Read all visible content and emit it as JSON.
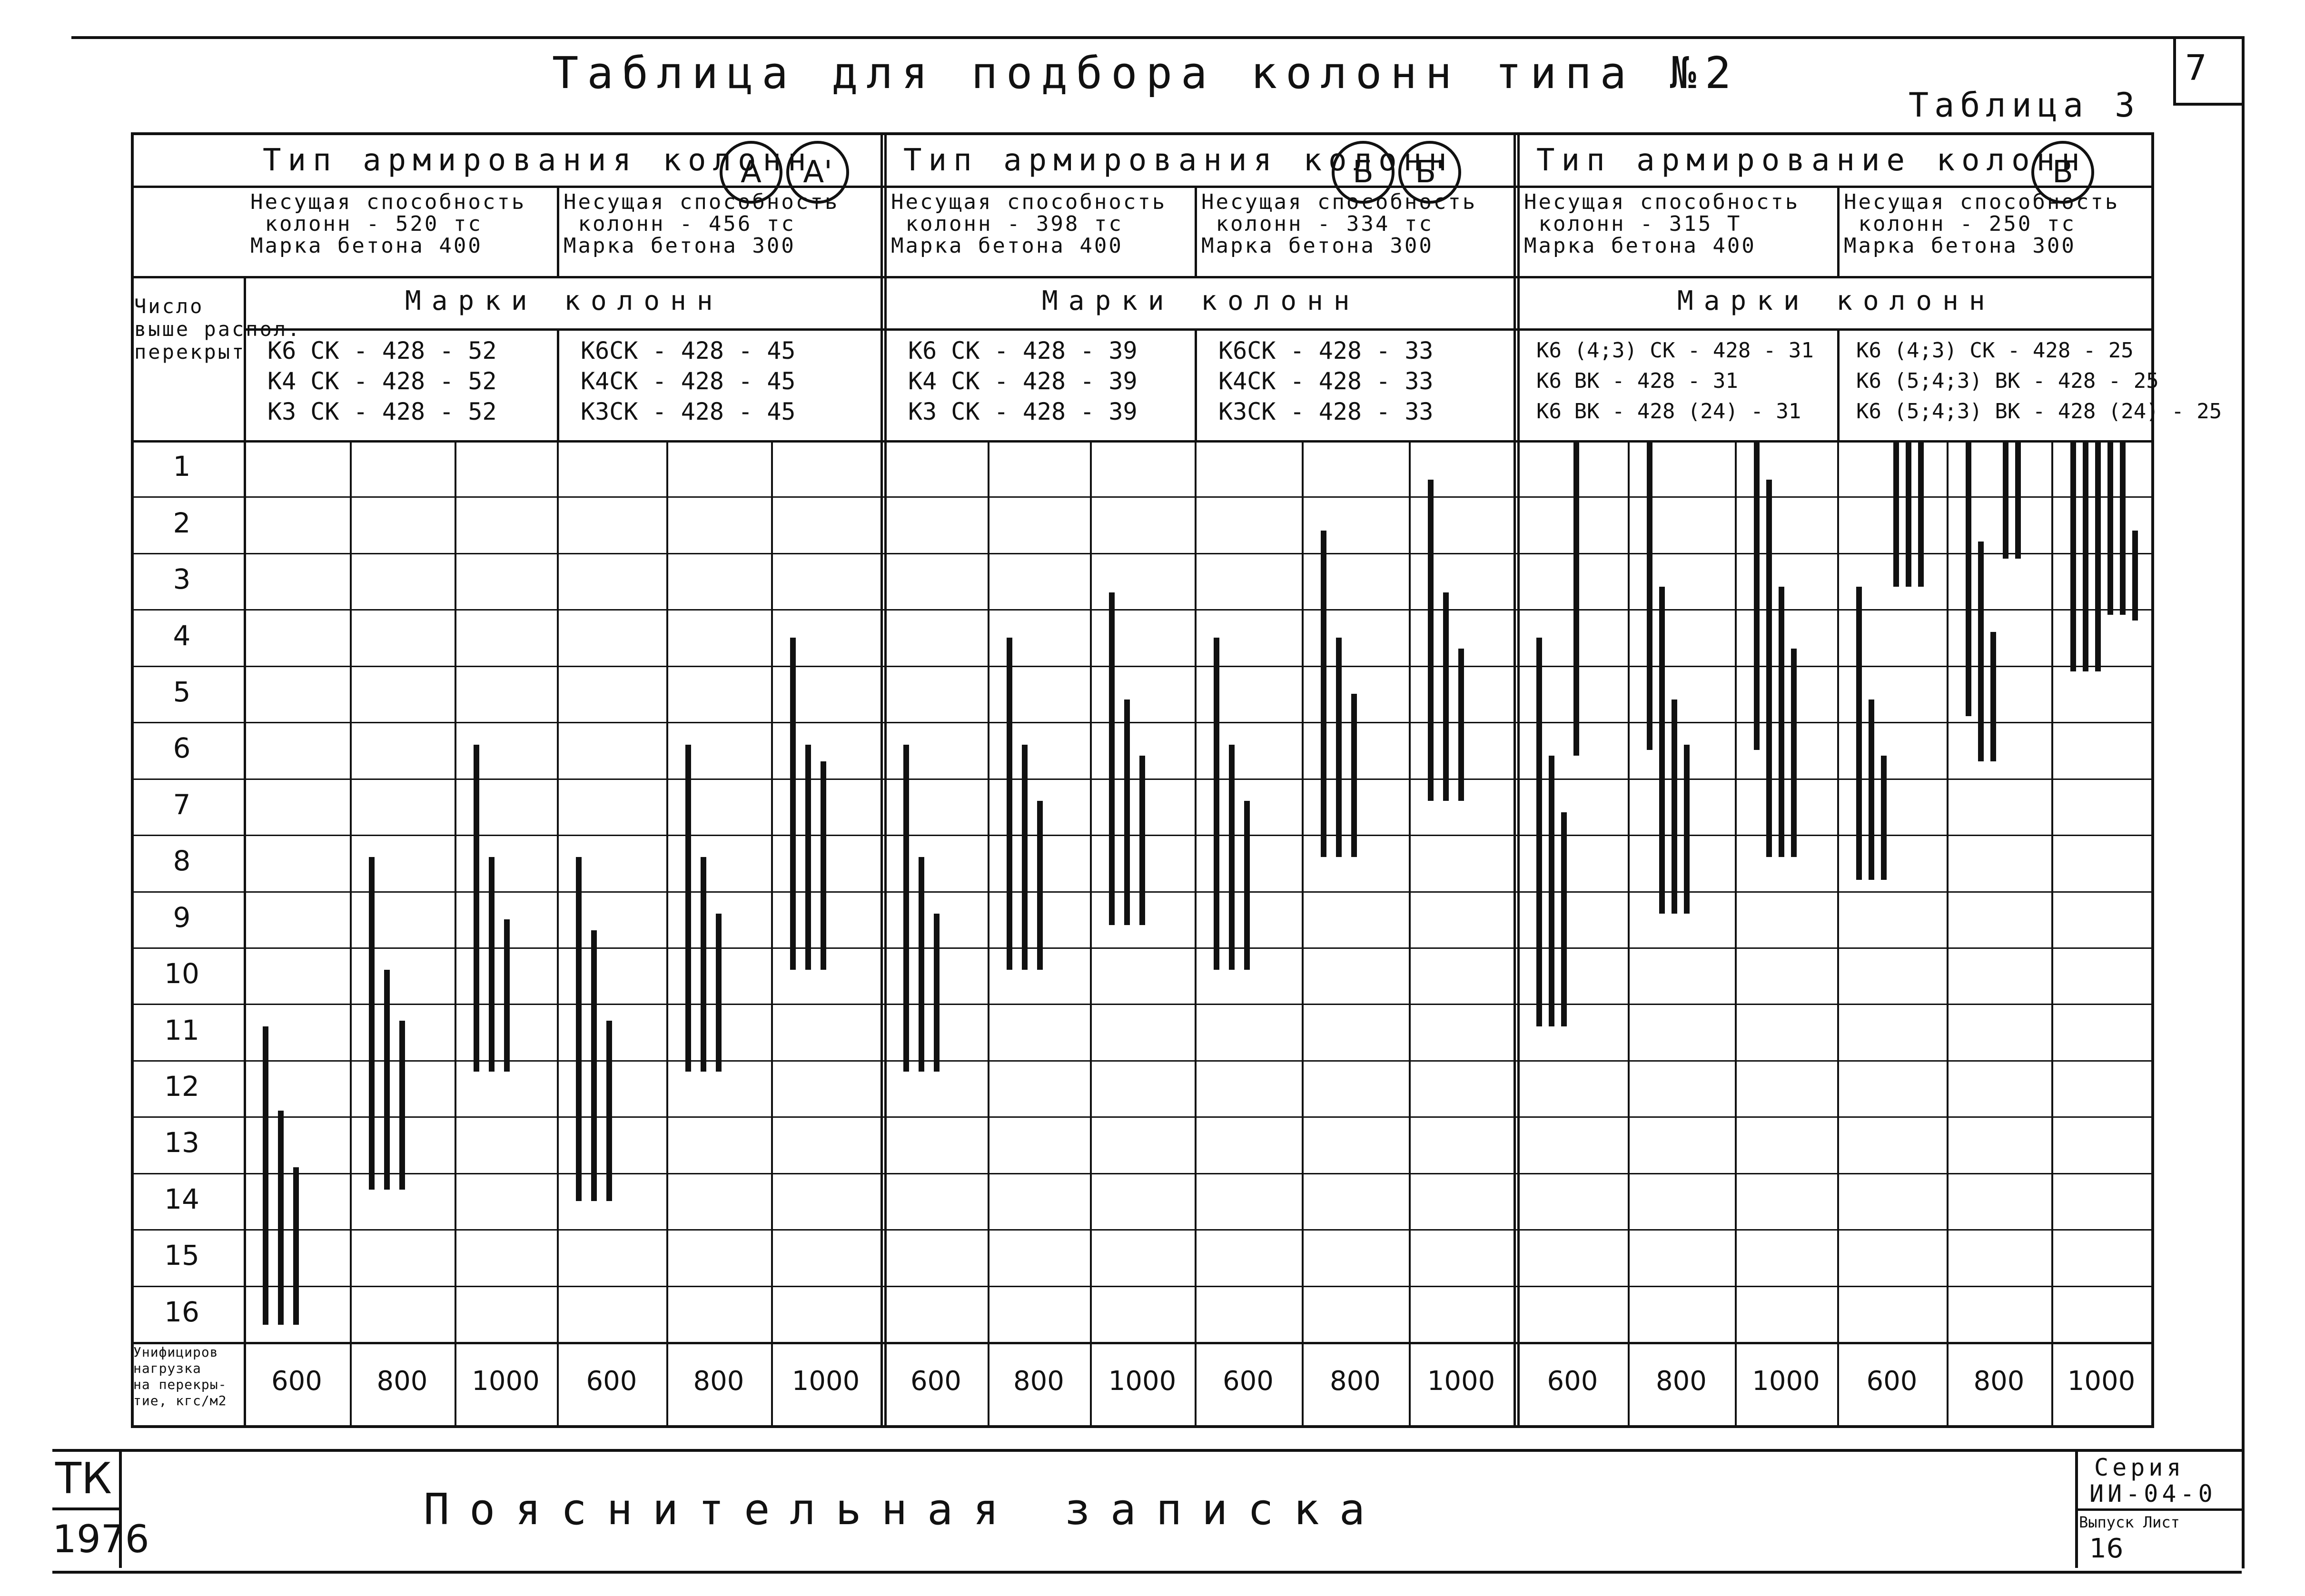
{
  "page_number": "7",
  "title": "Таблица для подбора колонн типа №2",
  "table_label": "Таблица 3",
  "row_header": {
    "count_label": "Число выше распол. перекрыт",
    "load_label": "Унифициров нагрузка на перекры-тие, кгс/м2"
  },
  "rows": [
    "1",
    "2",
    "3",
    "4",
    "5",
    "6",
    "7",
    "8",
    "9",
    "10",
    "11",
    "12",
    "13",
    "14",
    "15",
    "16"
  ],
  "groups": [
    {
      "type_label": "Тип армирования колонн",
      "type_marks": [
        "А",
        "А'"
      ],
      "marks_label": "Марки колонн",
      "subgroups": [
        {
          "capacity": "Несущая способность\n колонн - 520 тс\nМарка бетона 400",
          "marks": "К6 СК - 428 - 52\nК4 СК - 428 - 52\nК3 СК - 428 - 52"
        },
        {
          "capacity": "Несущая способность\n колонн - 456 тс\nМарка бетона 300",
          "marks": "К6СК - 428 - 45\nК4СК - 428 - 45\nК3СК - 428 - 45"
        }
      ],
      "loads": [
        "600",
        "800",
        "1000",
        "600",
        "800",
        "1000"
      ]
    },
    {
      "type_label": "Тип армирования колонн",
      "type_marks": [
        "Б",
        "Б'"
      ],
      "marks_label": "Марки колонн",
      "subgroups": [
        {
          "capacity": "Несущая способность\n колонн - 398 тс\nМарка бетона 400",
          "marks": "К6 СК - 428 - 39\nК4 СК - 428 - 39\nК3 СК - 428 - 39"
        },
        {
          "capacity": "Несущая способность\n колонн - 334 тс\nМарка бетона 300",
          "marks": "К6СК - 428 - 33\nК4СК - 428 - 33\nК3СК - 428 - 33"
        }
      ],
      "loads": [
        "600",
        "800",
        "1000",
        "600",
        "800",
        "1000"
      ]
    },
    {
      "type_label": "Тип армирование колонн",
      "type_marks": [
        "В"
      ],
      "marks_label": "Марки колонн",
      "subgroups": [
        {
          "capacity": "Несущая способность\n колонн - 315 Т\nМарка бетона 400",
          "marks": "К6 (4;3) СК - 428 - 31\nК6 ВК - 428 - 31\nК6 ВК - 428 (24) - 31"
        },
        {
          "capacity": "Несущая способность\n колонн - 250 тс\nМарка бетона 300",
          "marks": "К6 (4;3) СК - 428 - 25\nК6 (5;4;3) ВК - 428 - 25\nК6 (5;4;3) ВК - 428 (24) - 25"
        }
      ],
      "loads": [
        "600",
        "800",
        "1000",
        "600",
        "800",
        "1000"
      ]
    }
  ],
  "applicability": [
    [
      {
        "from": 10.4,
        "to": 15.7
      },
      {
        "from": 11.9,
        "to": 15.7
      },
      {
        "from": 12.9,
        "to": 15.7
      }
    ],
    [
      {
        "from": 7.4,
        "to": 13.3
      },
      {
        "from": 9.4,
        "to": 13.3
      },
      {
        "from": 10.3,
        "to": 13.3
      }
    ],
    [
      {
        "from": 5.4,
        "to": 11.2
      },
      {
        "from": 7.4,
        "to": 11.2
      },
      {
        "from": 8.5,
        "to": 11.2
      }
    ],
    [
      {
        "from": 7.4,
        "to": 13.5
      },
      {
        "from": 8.7,
        "to": 13.5
      },
      {
        "from": 10.3,
        "to": 13.5
      }
    ],
    [
      {
        "from": 5.4,
        "to": 11.2
      },
      {
        "from": 7.4,
        "to": 11.2
      },
      {
        "from": 8.4,
        "to": 11.2
      }
    ],
    [
      {
        "from": 3.5,
        "to": 9.4
      },
      {
        "from": 5.4,
        "to": 9.4
      },
      {
        "from": 5.7,
        "to": 9.4
      }
    ],
    [
      {
        "from": 5.4,
        "to": 11.2
      },
      {
        "from": 7.4,
        "to": 11.2
      },
      {
        "from": 8.4,
        "to": 11.2
      }
    ],
    [
      {
        "from": 3.5,
        "to": 9.4
      },
      {
        "from": 5.4,
        "to": 9.4
      },
      {
        "from": 6.4,
        "to": 9.4
      }
    ],
    [
      {
        "from": 2.7,
        "to": 8.6
      },
      {
        "from": 4.6,
        "to": 8.6
      },
      {
        "from": 5.6,
        "to": 8.6
      }
    ],
    [
      {
        "from": 3.5,
        "to": 9.4
      },
      {
        "from": 5.4,
        "to": 9.4
      },
      {
        "from": 6.4,
        "to": 9.4
      }
    ],
    [
      {
        "from": 1.6,
        "to": 7.4
      },
      {
        "from": 3.5,
        "to": 7.4
      },
      {
        "from": 4.5,
        "to": 7.4
      }
    ],
    [
      {
        "from": 0.7,
        "to": 6.4
      },
      {
        "from": 2.7,
        "to": 6.4
      },
      {
        "from": 3.7,
        "to": 6.4
      }
    ],
    [
      {
        "from": 3.5,
        "to": 10.4
      },
      {
        "from": 5.6,
        "to": 10.4
      },
      {
        "from": 6.6,
        "to": 10.4
      },
      {
        "from": 0,
        "to": 5.6
      }
    ],
    [
      {
        "from": 0,
        "to": 5.5
      },
      {
        "from": 2.6,
        "to": 8.4
      },
      {
        "from": 4.6,
        "to": 8.4
      },
      {
        "from": 5.4,
        "to": 8.4
      }
    ],
    [
      {
        "from": 0,
        "to": 5.5
      },
      {
        "from": 0.7,
        "to": 7.4
      },
      {
        "from": 2.6,
        "to": 7.4
      },
      {
        "from": 3.7,
        "to": 7.4
      }
    ],
    [
      {
        "from": 2.6,
        "to": 7.8
      },
      {
        "from": 4.6,
        "to": 7.8
      },
      {
        "from": 5.6,
        "to": 7.8
      },
      {
        "from": 0,
        "to": 2.6
      },
      {
        "from": 0,
        "to": 2.6
      },
      {
        "from": 0,
        "to": 2.6
      }
    ],
    [
      {
        "from": 0,
        "to": 4.9
      },
      {
        "from": 1.8,
        "to": 5.7
      },
      {
        "from": 3.4,
        "to": 5.7
      },
      {
        "from": 0,
        "to": 2.1
      },
      {
        "from": 0,
        "to": 2.1
      }
    ],
    [
      {
        "from": 0,
        "to": 4.1
      },
      {
        "from": 0,
        "to": 4.1
      },
      {
        "from": 0,
        "to": 4.1
      },
      {
        "from": 0,
        "to": 3.1
      },
      {
        "from": 0,
        "to": 3.1
      },
      {
        "from": 1.6,
        "to": 3.2
      }
    ]
  ],
  "footer": {
    "org_top": "ТК",
    "org_bottom": "1976",
    "title": "Пояснительная записка",
    "series_label": "Серия",
    "series_value": "ИИ-04-0",
    "issue_label": "Выпуск Лист",
    "sheet_value": "16"
  }
}
